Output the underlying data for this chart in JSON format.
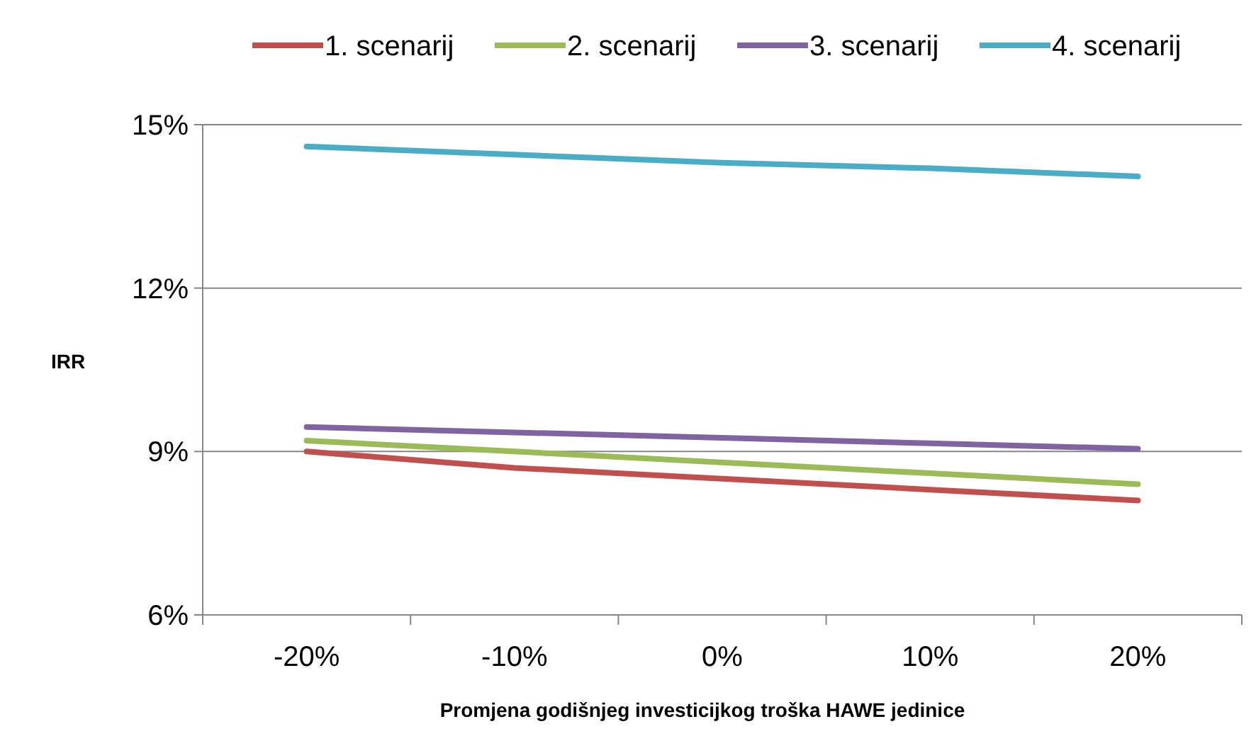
{
  "chart_data": {
    "type": "line",
    "xlabel": "Promjena godišnjeg investicijkog troška HAWE jedinice",
    "ylabel": "IRR",
    "categories": [
      "-20%",
      "-10%",
      "0%",
      "10%",
      "20%"
    ],
    "series": [
      {
        "name": "1. scenarij",
        "color": "#c0504d",
        "values": [
          9.0,
          8.7,
          8.5,
          8.3,
          8.1
        ]
      },
      {
        "name": "2. scenarij",
        "color": "#9bbb59",
        "values": [
          9.2,
          9.0,
          8.8,
          8.6,
          8.4
        ]
      },
      {
        "name": "3. scenarij",
        "color": "#8064a2",
        "values": [
          9.45,
          9.35,
          9.25,
          9.15,
          9.05
        ]
      },
      {
        "name": "4. scenarij",
        "color": "#4bacc6",
        "values": [
          14.6,
          14.45,
          14.3,
          14.2,
          14.05
        ]
      }
    ],
    "ylim": [
      6,
      15
    ],
    "yticks": [
      {
        "value": 6,
        "label": "6%"
      },
      {
        "value": 9,
        "label": "9%"
      },
      {
        "value": 12,
        "label": "12%"
      },
      {
        "value": 15,
        "label": "15%"
      }
    ],
    "grid": "y",
    "legend": "top",
    "marker": "none",
    "line_style": "solid"
  }
}
